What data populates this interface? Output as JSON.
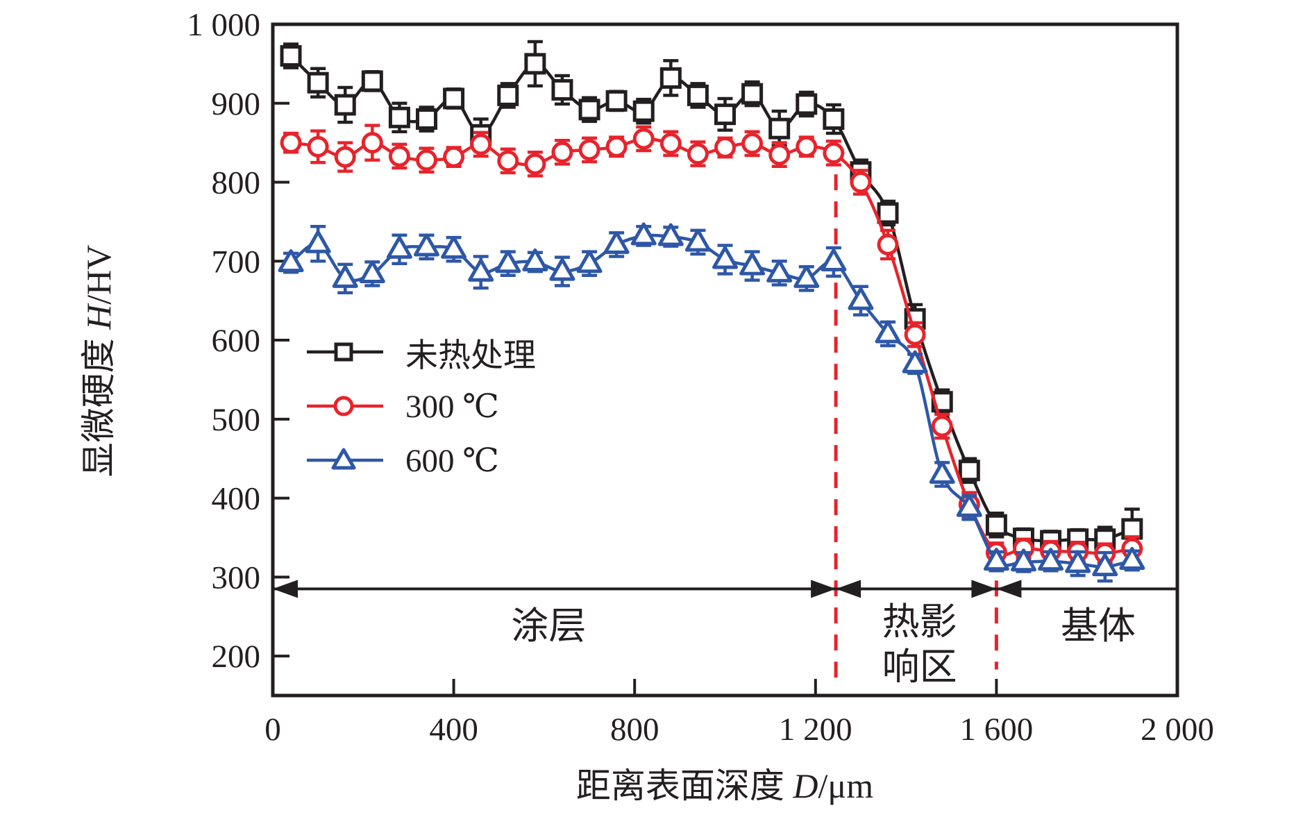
{
  "figure": {
    "background": "#ffffff",
    "axis_color": "#231f20",
    "text_color": "#231f20"
  },
  "axes": {
    "x": {
      "title_prefix": "距离表面深度 ",
      "title_var": "D",
      "title_unit": "/μm",
      "ticks": [
        0,
        400,
        800,
        1200,
        1600,
        2000
      ],
      "tick_labels": [
        "0",
        "400",
        "800",
        "1 200",
        "1 600",
        "2 000"
      ]
    },
    "y": {
      "title_prefix": "显微硬度 ",
      "title_var": "H",
      "title_unit": "/HV",
      "ticks": [
        200,
        300,
        400,
        500,
        600,
        700,
        800,
        900,
        1000
      ],
      "tick_labels": [
        "200",
        "300",
        "400",
        "500",
        "600",
        "700",
        "800",
        "900",
        "1 000"
      ]
    }
  },
  "legend": {
    "items": [
      {
        "id": "untreated",
        "label": "未热处理",
        "color": "#231f20",
        "marker": "square"
      },
      {
        "id": "300c",
        "label": "300 ℃",
        "color": "#e8232b",
        "marker": "circle"
      },
      {
        "id": "600c",
        "label": "600 ℃",
        "color": "#2e57a7",
        "marker": "triangle"
      }
    ]
  },
  "annotations": {
    "dashed_color": "#e8232b",
    "dashed_lines": [
      {
        "x_um": 1245,
        "y_top_hv": 810,
        "y_bottom_hv": 163
      },
      {
        "x_um": 1600,
        "y_top_hv": 330,
        "y_bottom_hv": 183
      }
    ],
    "span_line": {
      "y_hv": 285,
      "color": "#231f20",
      "segments": [
        {
          "from_um": 0,
          "to_um": 1245,
          "arrow_left": true,
          "arrow_right": true
        },
        {
          "from_um": 1245,
          "to_um": 1600,
          "arrow_left": true,
          "arrow_right": true
        },
        {
          "from_um": 1600,
          "to_um": 2000,
          "arrow_left": true,
          "arrow_right": false
        }
      ]
    },
    "regions": [
      {
        "id": "coating",
        "lines": [
          "涂层"
        ],
        "x_um": 610,
        "y_hv": [
          238
        ]
      },
      {
        "id": "heat-affected-zone",
        "lines": [
          "热影",
          "响区"
        ],
        "x_um": 1430,
        "y_hv": [
          243,
          186
        ]
      },
      {
        "id": "substrate",
        "lines": [
          "基体"
        ],
        "x_um": 1825,
        "y_hv": [
          238
        ]
      }
    ]
  },
  "chart_data": {
    "type": "line",
    "title": "",
    "xlabel": "距离表面深度 D/μm",
    "ylabel": "显微硬度 H/HV",
    "xlim": [
      0,
      2000
    ],
    "ylim": [
      150,
      1000
    ],
    "grid": false,
    "legend_position": "upper-left-inside",
    "x": [
      40,
      100,
      160,
      220,
      280,
      340,
      400,
      460,
      520,
      580,
      640,
      700,
      760,
      820,
      880,
      940,
      1000,
      1060,
      1120,
      1180,
      1240,
      1300,
      1360,
      1420,
      1480,
      1540,
      1600,
      1660,
      1720,
      1780,
      1840,
      1900
    ],
    "series": [
      {
        "name": "未热处理",
        "id": "untreated",
        "color": "#231f20",
        "marker": "square",
        "values": [
          960,
          926,
          898,
          928,
          882,
          880,
          906,
          860,
          910,
          950,
          917,
          892,
          903,
          890,
          932,
          910,
          886,
          912,
          868,
          899,
          880,
          813,
          761,
          627,
          522,
          435,
          366,
          349,
          346,
          348,
          348,
          361
        ],
        "errors": [
          15,
          18,
          22,
          12,
          18,
          15,
          12,
          20,
          15,
          28,
          18,
          15,
          12,
          15,
          22,
          15,
          20,
          15,
          22,
          15,
          18,
          15,
          15,
          18,
          15,
          15,
          15,
          12,
          12,
          12,
          15,
          25
        ]
      },
      {
        "name": "300 ℃",
        "id": "300c",
        "color": "#e8232b",
        "marker": "circle",
        "values": [
          850,
          845,
          832,
          850,
          833,
          828,
          832,
          848,
          827,
          823,
          838,
          841,
          845,
          855,
          849,
          836,
          844,
          849,
          835,
          845,
          837,
          800,
          721,
          607,
          491,
          392,
          331,
          336,
          333,
          332,
          330,
          336
        ],
        "errors": [
          12,
          20,
          18,
          22,
          15,
          15,
          12,
          15,
          15,
          15,
          15,
          15,
          12,
          15,
          15,
          15,
          12,
          15,
          15,
          12,
          15,
          15,
          18,
          15,
          15,
          15,
          12,
          12,
          12,
          12,
          12,
          15
        ]
      },
      {
        "name": "600 ℃",
        "id": "600c",
        "color": "#2e57a7",
        "marker": "triangle",
        "values": [
          698,
          722,
          678,
          684,
          715,
          718,
          715,
          686,
          697,
          699,
          687,
          697,
          721,
          732,
          731,
          724,
          702,
          694,
          685,
          678,
          699,
          650,
          608,
          570,
          430,
          388,
          320,
          319,
          320,
          317,
          313,
          321
        ],
        "errors": [
          12,
          22,
          18,
          15,
          18,
          15,
          15,
          20,
          15,
          12,
          18,
          15,
          15,
          12,
          12,
          15,
          18,
          18,
          15,
          15,
          18,
          18,
          15,
          12,
          15,
          15,
          12,
          12,
          12,
          15,
          18,
          12
        ]
      }
    ]
  }
}
